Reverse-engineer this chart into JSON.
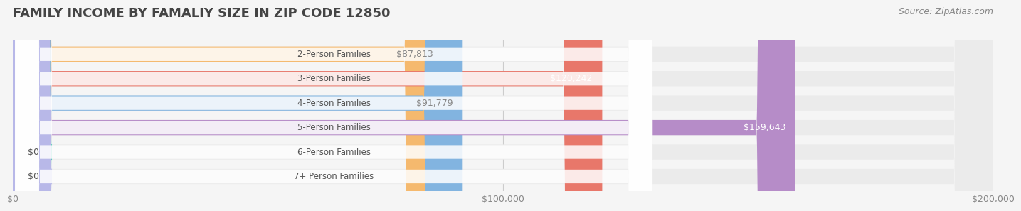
{
  "title": "FAMILY INCOME BY FAMALIY SIZE IN ZIP CODE 12850",
  "source": "Source: ZipAtlas.com",
  "categories": [
    "2-Person Families",
    "3-Person Families",
    "4-Person Families",
    "5-Person Families",
    "6-Person Families",
    "7+ Person Families"
  ],
  "values": [
    87813,
    120242,
    91779,
    159643,
    0,
    0
  ],
  "bar_colors": [
    "#f5b96e",
    "#e8776a",
    "#82b4e0",
    "#b68cc8",
    "#5ec8b8",
    "#b8b8e8"
  ],
  "label_colors": [
    "#888888",
    "#ffffff",
    "#888888",
    "#ffffff",
    "#888888",
    "#888888"
  ],
  "xmax": 200000,
  "xticks": [
    0,
    100000,
    200000
  ],
  "xtick_labels": [
    "$0",
    "$100,000",
    "$200,000"
  ],
  "background_color": "#f5f5f5",
  "bar_bg_color": "#ebebeb",
  "title_fontsize": 13,
  "source_fontsize": 9,
  "bar_height": 0.62,
  "bar_label_fontsize": 9
}
